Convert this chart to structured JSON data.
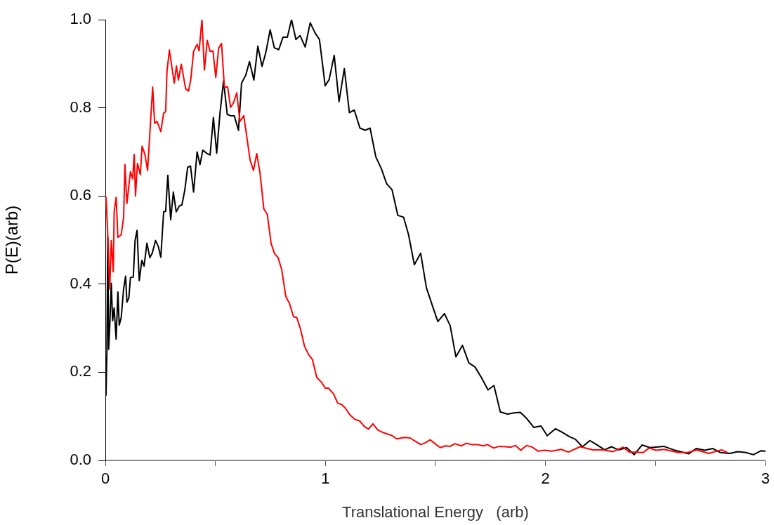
{
  "chart_data": {
    "type": "line",
    "xlabel": "Translational Energy   (arb)",
    "ylabel": "P(E)(arb)",
    "xlim": [
      0,
      3
    ],
    "xticks": [
      0,
      {
        "value": 0.5,
        "label": null
      },
      1,
      {
        "value": 1.5,
        "label": null
      },
      2,
      {
        "value": 2.5,
        "label": null
      },
      3
    ],
    "ylim": [
      0,
      1
    ],
    "yticks": [
      {
        "value": 0,
        "label": "0.0"
      },
      {
        "value": 0.2,
        "label": "0.2"
      },
      {
        "value": 0.4,
        "label": "0.4"
      },
      {
        "value": 0.6,
        "label": "0.6"
      },
      {
        "value": 0.8,
        "label": "0.8"
      },
      {
        "value": 1,
        "label": "1.0"
      }
    ],
    "grid": false,
    "legend": false,
    "marker": "none",
    "line_style": "solid",
    "series": [
      {
        "color": "#ff0000",
        "x": [
          0.003,
          0.01,
          0.02,
          0.027,
          0.036,
          0.04,
          0.049,
          0.057,
          0.072,
          0.083,
          0.089,
          0.098,
          0.114,
          0.124,
          0.131,
          0.137,
          0.146,
          0.159,
          0.167,
          0.18,
          0.192,
          0.215,
          0.224,
          0.235,
          0.252,
          0.265,
          0.274,
          0.28,
          0.291,
          0.313,
          0.323,
          0.332,
          0.345,
          0.365,
          0.378,
          0.388,
          0.401,
          0.417,
          0.426,
          0.439,
          0.45,
          0.463,
          0.476,
          0.489,
          0.502,
          0.515,
          0.528,
          0.541,
          0.556,
          0.569,
          0.582,
          0.597,
          0.612,
          0.629,
          0.658,
          0.673,
          0.688,
          0.703,
          0.72,
          0.736,
          0.753,
          0.768,
          0.785,
          0.801,
          0.82,
          0.837,
          0.855,
          0.87,
          0.887,
          0.905,
          0.925,
          0.941,
          0.961,
          0.983,
          0.999,
          1.014,
          1.037,
          1.056,
          1.073,
          1.09,
          1.112,
          1.134,
          1.155,
          1.177,
          1.196,
          1.216,
          1.238,
          1.268,
          1.3,
          1.324,
          1.359,
          1.385,
          1.407,
          1.433,
          1.454,
          1.476,
          1.498,
          1.522,
          1.545,
          1.567,
          1.589,
          1.617,
          1.639,
          1.665,
          1.691,
          1.717,
          1.736,
          1.765,
          1.791,
          1.821,
          1.843,
          1.864,
          1.888,
          1.914,
          1.94,
          1.967,
          1.996,
          2.029,
          2.072,
          2.104,
          2.157,
          2.216,
          2.263,
          2.306,
          2.354,
          2.38,
          2.444,
          2.471,
          2.502,
          2.54,
          2.603,
          2.646,
          2.688,
          2.741,
          2.8,
          2.826
        ],
        "values": [
          0.597,
          0.525,
          0.389,
          0.499,
          0.428,
          0.564,
          0.597,
          0.506,
          0.512,
          0.551,
          0.671,
          0.583,
          0.655,
          0.639,
          0.694,
          0.6,
          0.674,
          0.648,
          0.713,
          0.694,
          0.658,
          0.847,
          0.765,
          0.769,
          0.746,
          0.788,
          0.791,
          0.882,
          0.931,
          0.856,
          0.895,
          0.863,
          0.899,
          0.843,
          0.838,
          0.863,
          0.928,
          0.944,
          0.929,
          1.0,
          0.886,
          0.953,
          0.928,
          0.929,
          0.869,
          0.936,
          0.946,
          0.847,
          0.847,
          0.801,
          0.811,
          0.834,
          0.769,
          0.782,
          0.681,
          0.658,
          0.696,
          0.652,
          0.571,
          0.558,
          0.493,
          0.47,
          0.46,
          0.434,
          0.372,
          0.356,
          0.326,
          0.324,
          0.298,
          0.259,
          0.239,
          0.229,
          0.188,
          0.177,
          0.164,
          0.164,
          0.151,
          0.13,
          0.127,
          0.119,
          0.103,
          0.093,
          0.09,
          0.077,
          0.071,
          0.083,
          0.069,
          0.062,
          0.057,
          0.049,
          0.052,
          0.051,
          0.044,
          0.036,
          0.04,
          0.047,
          0.038,
          0.029,
          0.033,
          0.032,
          0.038,
          0.033,
          0.039,
          0.036,
          0.036,
          0.033,
          0.036,
          0.028,
          0.032,
          0.031,
          0.03,
          0.034,
          0.023,
          0.034,
          0.03,
          0.021,
          0.023,
          0.021,
          0.025,
          0.019,
          0.031,
          0.024,
          0.024,
          0.02,
          0.03,
          0.019,
          0.018,
          0.028,
          0.023,
          0.025,
          0.018,
          0.018,
          0.024,
          0.016,
          0.024,
          0.018
        ]
      },
      {
        "color": "#000000",
        "x": [
          0.003,
          0.007,
          0.011,
          0.015,
          0.02,
          0.027,
          0.033,
          0.04,
          0.049,
          0.057,
          0.063,
          0.072,
          0.083,
          0.092,
          0.098,
          0.107,
          0.114,
          0.127,
          0.135,
          0.144,
          0.154,
          0.166,
          0.176,
          0.189,
          0.202,
          0.213,
          0.228,
          0.241,
          0.252,
          0.265,
          0.274,
          0.284,
          0.297,
          0.309,
          0.322,
          0.336,
          0.348,
          0.361,
          0.374,
          0.387,
          0.401,
          0.417,
          0.43,
          0.443,
          0.46,
          0.476,
          0.491,
          0.506,
          0.521,
          0.537,
          0.554,
          0.569,
          0.586,
          0.605,
          0.619,
          0.638,
          0.655,
          0.675,
          0.693,
          0.712,
          0.729,
          0.749,
          0.768,
          0.788,
          0.807,
          0.827,
          0.846,
          0.866,
          0.885,
          0.908,
          0.931,
          0.953,
          0.973,
          0.999,
          1.017,
          1.04,
          1.062,
          1.086,
          1.109,
          1.131,
          1.157,
          1.181,
          1.203,
          1.229,
          1.255,
          1.278,
          1.303,
          1.329,
          1.355,
          1.378,
          1.404,
          1.433,
          1.459,
          1.485,
          1.511,
          1.541,
          1.567,
          1.593,
          1.623,
          1.652,
          1.68,
          1.71,
          1.739,
          1.766,
          1.795,
          1.828,
          1.858,
          1.886,
          1.915,
          1.947,
          1.98,
          2.008,
          2.046,
          2.072,
          2.109,
          2.136,
          2.168,
          2.202,
          2.232,
          2.269,
          2.3,
          2.332,
          2.369,
          2.403,
          2.439,
          2.475,
          2.538,
          2.582,
          2.651,
          2.685,
          2.725,
          2.76,
          2.794,
          2.837,
          2.874,
          2.911,
          2.945,
          2.98,
          2.998
        ],
        "values": [
          0.148,
          0.246,
          0.506,
          0.252,
          0.304,
          0.402,
          0.317,
          0.346,
          0.275,
          0.382,
          0.307,
          0.324,
          0.389,
          0.418,
          0.359,
          0.369,
          0.415,
          0.416,
          0.499,
          0.522,
          0.408,
          0.454,
          0.441,
          0.493,
          0.46,
          0.47,
          0.499,
          0.485,
          0.461,
          0.564,
          0.565,
          0.647,
          0.546,
          0.609,
          0.564,
          0.577,
          0.58,
          0.613,
          0.665,
          0.668,
          0.609,
          0.7,
          0.671,
          0.704,
          0.697,
          0.693,
          0.778,
          0.697,
          0.788,
          0.861,
          0.785,
          0.782,
          0.782,
          0.749,
          0.856,
          0.874,
          0.905,
          0.863,
          0.94,
          0.894,
          0.925,
          0.977,
          0.936,
          0.932,
          0.96,
          0.96,
          1.0,
          0.955,
          0.964,
          0.938,
          0.993,
          0.97,
          0.955,
          0.85,
          0.864,
          0.919,
          0.814,
          0.889,
          0.789,
          0.795,
          0.754,
          0.749,
          0.754,
          0.689,
          0.661,
          0.628,
          0.614,
          0.556,
          0.552,
          0.512,
          0.444,
          0.47,
          0.392,
          0.353,
          0.315,
          0.333,
          0.306,
          0.235,
          0.261,
          0.221,
          0.212,
          0.187,
          0.16,
          0.17,
          0.11,
          0.105,
          0.108,
          0.109,
          0.095,
          0.075,
          0.078,
          0.056,
          0.072,
          0.065,
          0.054,
          0.048,
          0.031,
          0.045,
          0.036,
          0.024,
          0.031,
          0.024,
          0.029,
          0.013,
          0.035,
          0.029,
          0.032,
          0.024,
          0.015,
          0.027,
          0.023,
          0.027,
          0.018,
          0.016,
          0.02,
          0.018,
          0.013,
          0.022,
          0.021
        ]
      }
    ]
  }
}
